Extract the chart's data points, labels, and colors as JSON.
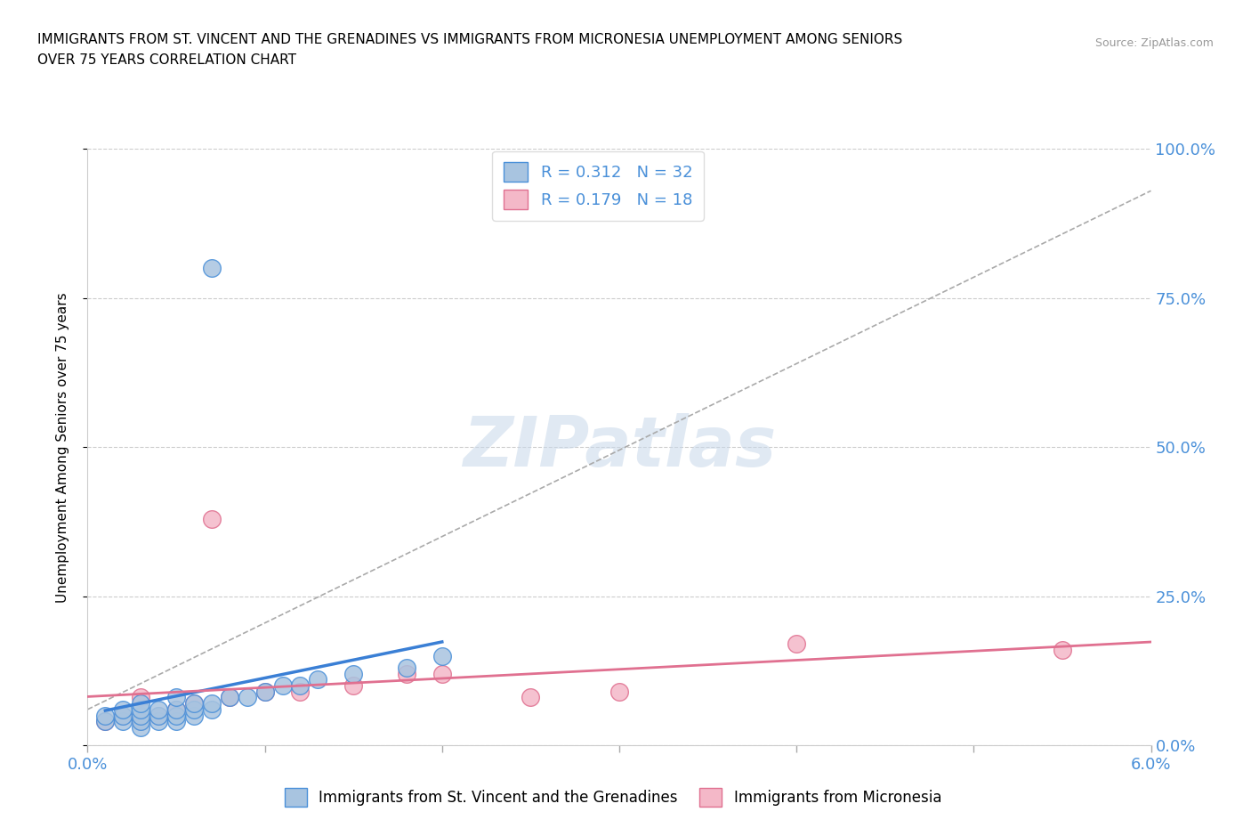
{
  "title_line1": "IMMIGRANTS FROM ST. VINCENT AND THE GRENADINES VS IMMIGRANTS FROM MICRONESIA UNEMPLOYMENT AMONG SENIORS",
  "title_line2": "OVER 75 YEARS CORRELATION CHART",
  "source_text": "Source: ZipAtlas.com",
  "ylabel": "Unemployment Among Seniors over 75 years",
  "xlim": [
    0.0,
    0.06
  ],
  "ylim": [
    0.0,
    1.0
  ],
  "ytick_labels": [
    "0.0%",
    "25.0%",
    "50.0%",
    "75.0%",
    "100.0%"
  ],
  "ytick_values": [
    0.0,
    0.25,
    0.5,
    0.75,
    1.0
  ],
  "series1_color": "#a8c4e0",
  "series1_edge_color": "#4a90d9",
  "series2_color": "#f4b8c8",
  "series2_edge_color": "#e07090",
  "trendline1_color": "#3a7fd5",
  "trendline2_color": "#e07090",
  "dashed_line_color": "#aaaaaa",
  "R1": 0.312,
  "N1": 32,
  "R2": 0.179,
  "N2": 18,
  "label1": "Immigrants from St. Vincent and the Grenadines",
  "label2": "Immigrants from Micronesia",
  "sv_x": [
    0.001,
    0.001,
    0.002,
    0.002,
    0.002,
    0.003,
    0.003,
    0.003,
    0.003,
    0.003,
    0.004,
    0.004,
    0.004,
    0.005,
    0.005,
    0.005,
    0.005,
    0.006,
    0.006,
    0.006,
    0.007,
    0.007,
    0.008,
    0.009,
    0.01,
    0.011,
    0.012,
    0.013,
    0.015,
    0.018,
    0.02,
    0.007
  ],
  "sv_y": [
    0.04,
    0.05,
    0.04,
    0.05,
    0.06,
    0.03,
    0.04,
    0.05,
    0.06,
    0.07,
    0.04,
    0.05,
    0.06,
    0.04,
    0.05,
    0.06,
    0.08,
    0.05,
    0.06,
    0.07,
    0.06,
    0.07,
    0.08,
    0.08,
    0.09,
    0.1,
    0.1,
    0.11,
    0.12,
    0.13,
    0.15,
    0.8
  ],
  "mc_x": [
    0.001,
    0.002,
    0.003,
    0.003,
    0.004,
    0.005,
    0.006,
    0.007,
    0.008,
    0.01,
    0.012,
    0.015,
    0.018,
    0.02,
    0.025,
    0.03,
    0.04,
    0.055
  ],
  "mc_y": [
    0.04,
    0.05,
    0.04,
    0.08,
    0.05,
    0.06,
    0.07,
    0.38,
    0.08,
    0.09,
    0.09,
    0.1,
    0.12,
    0.12,
    0.08,
    0.09,
    0.17,
    0.16
  ]
}
